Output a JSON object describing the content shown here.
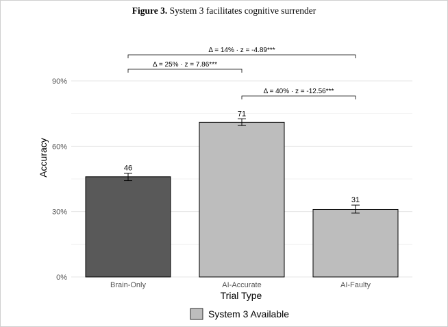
{
  "figure": {
    "label": "Figure 3.",
    "caption": "System 3 facilitates cognitive surrender"
  },
  "chart_data": {
    "type": "bar",
    "title": "Figure 3. System 3 facilitates cognitive surrender",
    "xlabel": "Trial Type",
    "ylabel": "Accuracy",
    "categories": [
      "Brain-Only",
      "AI-Accurate",
      "AI-Faulty"
    ],
    "values": [
      46,
      71,
      31
    ],
    "value_labels": [
      "46",
      "71",
      "31"
    ],
    "error_low": [
      44.2,
      69.5,
      29.3
    ],
    "error_high": [
      47.6,
      72.6,
      33.0
    ],
    "bar_colors": [
      "#595959",
      "#bdbdbd",
      "#bdbdbd"
    ],
    "ylim": [
      0,
      90
    ],
    "yticks": [
      0,
      30,
      60,
      90
    ],
    "ytick_labels": [
      "0%",
      "30%",
      "60%",
      "90%"
    ],
    "grid": true,
    "legend": {
      "position": "bottom",
      "entries": [
        {
          "label": "System 3 Available",
          "color": "#bdbdbd"
        }
      ]
    },
    "comparisons": [
      {
        "from": 0,
        "to": 2,
        "label": "Δ = 14% · z  = -4.89***",
        "level": 3
      },
      {
        "from": 0,
        "to": 1,
        "label": "Δ = 25% · z  = 7.86***",
        "level": 2
      },
      {
        "from": 1,
        "to": 2,
        "label": "Δ = 40% · z  = -12.56***",
        "level": 1
      }
    ]
  }
}
